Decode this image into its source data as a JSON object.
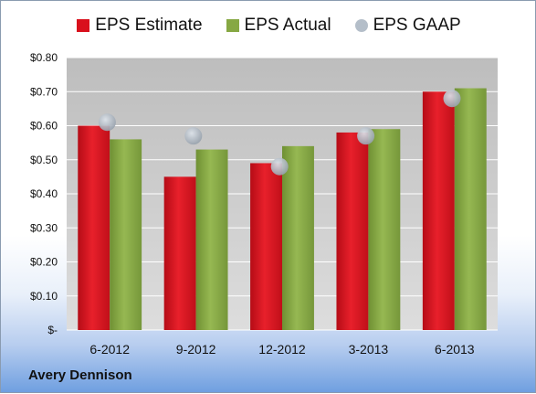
{
  "chart_data": {
    "type": "bar",
    "title": "",
    "xlabel": "",
    "ylabel": "",
    "categories": [
      "6-2012",
      "9-2012",
      "12-2012",
      "3-2013",
      "6-2013"
    ],
    "series": [
      {
        "name": "EPS Estimate",
        "values": [
          0.6,
          0.45,
          0.49,
          0.58,
          0.7
        ],
        "color": "#d9101c",
        "mark": "bar"
      },
      {
        "name": "EPS Actual",
        "values": [
          0.56,
          0.53,
          0.54,
          0.59,
          0.71
        ],
        "color": "#86a843",
        "mark": "bar"
      },
      {
        "name": "EPS GAAP",
        "values": [
          0.61,
          0.57,
          0.48,
          0.57,
          0.68
        ],
        "color": "#a9b4c0",
        "mark": "circle"
      }
    ],
    "ylim": [
      0,
      0.8
    ],
    "yticks": [
      {
        "value": 0.0,
        "label": "$-"
      },
      {
        "value": 0.1,
        "label": "$0.10"
      },
      {
        "value": 0.2,
        "label": "$0.20"
      },
      {
        "value": 0.3,
        "label": "$0.30"
      },
      {
        "value": 0.4,
        "label": "$0.40"
      },
      {
        "value": 0.5,
        "label": "$0.50"
      },
      {
        "value": 0.6,
        "label": "$0.60"
      },
      {
        "value": 0.7,
        "label": "$0.70"
      },
      {
        "value": 0.8,
        "label": "$0.80"
      }
    ],
    "grid": true,
    "legend_position": "top-center"
  },
  "company_name": "Avery Dennison"
}
